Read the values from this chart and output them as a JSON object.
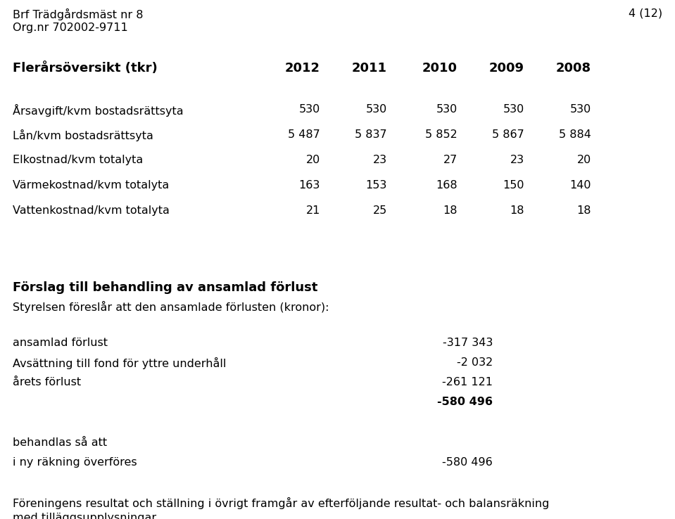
{
  "header_left_line1": "Brf Trädgårdsmäst nr 8",
  "header_left_line2": "Org.nr 702002-9711",
  "header_right": "4 (12)",
  "table_title": "Flerårsöversikt (tkr)",
  "columns": [
    "2012",
    "2011",
    "2010",
    "2009",
    "2008"
  ],
  "rows": [
    {
      "label": "Årsavgift/kvm bostadsrättsyta",
      "values": [
        "530",
        "530",
        "530",
        "530",
        "530"
      ]
    },
    {
      "label": "Lån/kvm bostadsrättsyta",
      "values": [
        "5 487",
        "5 837",
        "5 852",
        "5 867",
        "5 884"
      ]
    },
    {
      "label": "Elkostnad/kvm totalyta",
      "values": [
        "20",
        "23",
        "27",
        "23",
        "20"
      ]
    },
    {
      "label": "Värmekostnad/kvm totalyta",
      "values": [
        "163",
        "153",
        "168",
        "150",
        "140"
      ]
    },
    {
      "label": "Vattenkostnad/kvm totalyta",
      "values": [
        "21",
        "25",
        "18",
        "18",
        "18"
      ]
    }
  ],
  "section_title": "Förslag till behandling av ansamlad förlust",
  "section_subtitle": "Styrelsen föreslår att den ansamlade förlusten (kronor):",
  "loss_items": [
    {
      "label": "ansamlad förlust",
      "value": "-317 343",
      "bold": false
    },
    {
      "label": "Avsättning till fond för yttre underhåll",
      "value": "-2 032",
      "bold": false
    },
    {
      "label": "årets förlust",
      "value": "-261 121",
      "bold": false
    },
    {
      "label": "",
      "value": "-580 496",
      "bold": true
    }
  ],
  "transfer_label1": "behandlas så att",
  "transfer_label2": "i ny räkning överföres",
  "transfer_value": "-580 496",
  "footer_line1": "Föreningens resultat och ställning i övrigt framgår av efterföljande resultat- och balansräkning",
  "footer_line2": "med tilläggsupplysningar.",
  "bg_color": "#ffffff",
  "text_color": "#000000",
  "font_size": 11.5,
  "section_title_font_size": 13
}
